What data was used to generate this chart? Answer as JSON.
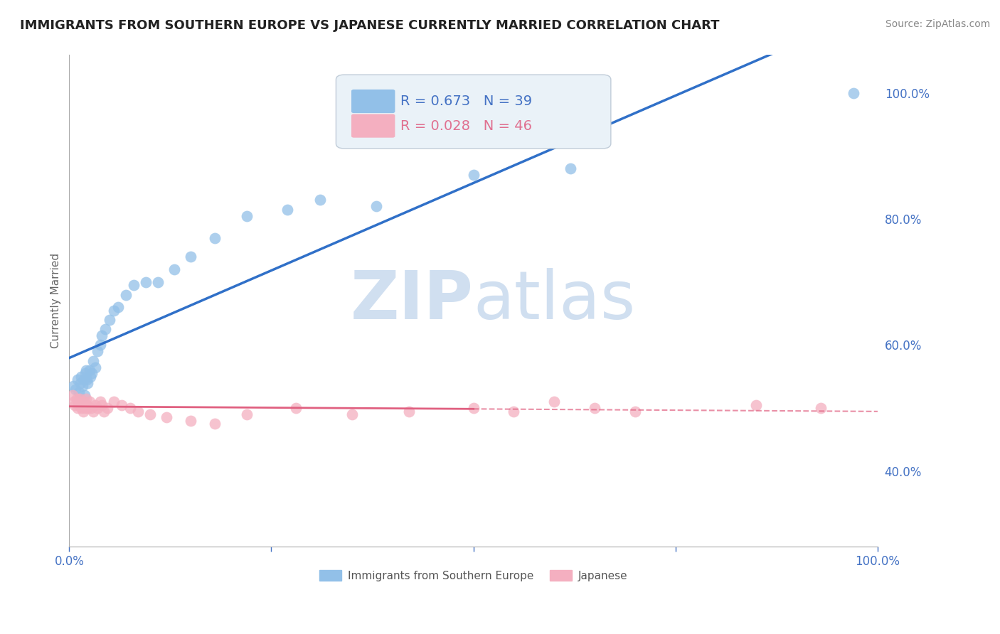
{
  "title": "IMMIGRANTS FROM SOUTHERN EUROPE VS JAPANESE CURRENTLY MARRIED CORRELATION CHART",
  "source": "Source: ZipAtlas.com",
  "ylabel": "Currently Married",
  "right_ytick_labels": [
    "40.0%",
    "60.0%",
    "80.0%",
    "100.0%"
  ],
  "right_ytick_values": [
    0.4,
    0.6,
    0.8,
    1.0
  ],
  "xmin": 0.0,
  "xmax": 1.0,
  "ymin": 0.28,
  "ymax": 1.06,
  "blue_label": "Immigrants from Southern Europe",
  "pink_label": "Japanese",
  "blue_R": 0.673,
  "blue_N": 39,
  "pink_R": 0.028,
  "pink_N": 46,
  "blue_color": "#92c0e8",
  "pink_color": "#f4afc0",
  "blue_line_color": "#3070c8",
  "pink_line_color": "#e06080",
  "watermark_zip": "ZIP",
  "watermark_atlas": "atlas",
  "watermark_color": "#d0dff0",
  "blue_x": [
    0.005,
    0.008,
    0.01,
    0.012,
    0.014,
    0.015,
    0.016,
    0.018,
    0.019,
    0.02,
    0.021,
    0.022,
    0.023,
    0.025,
    0.026,
    0.028,
    0.03,
    0.032,
    0.035,
    0.038,
    0.04,
    0.045,
    0.05,
    0.055,
    0.06,
    0.07,
    0.08,
    0.095,
    0.11,
    0.13,
    0.15,
    0.18,
    0.22,
    0.27,
    0.31,
    0.38,
    0.5,
    0.62,
    0.97
  ],
  "blue_y": [
    0.535,
    0.53,
    0.545,
    0.525,
    0.54,
    0.55,
    0.535,
    0.545,
    0.52,
    0.555,
    0.56,
    0.545,
    0.54,
    0.56,
    0.55,
    0.555,
    0.575,
    0.565,
    0.59,
    0.6,
    0.615,
    0.625,
    0.64,
    0.655,
    0.66,
    0.68,
    0.695,
    0.7,
    0.7,
    0.72,
    0.74,
    0.77,
    0.805,
    0.815,
    0.83,
    0.82,
    0.87,
    0.88,
    1.0
  ],
  "pink_x": [
    0.004,
    0.006,
    0.007,
    0.009,
    0.01,
    0.011,
    0.012,
    0.013,
    0.014,
    0.015,
    0.016,
    0.017,
    0.018,
    0.019,
    0.02,
    0.021,
    0.022,
    0.023,
    0.025,
    0.027,
    0.03,
    0.032,
    0.035,
    0.038,
    0.04,
    0.043,
    0.047,
    0.055,
    0.065,
    0.075,
    0.085,
    0.1,
    0.12,
    0.15,
    0.18,
    0.22,
    0.28,
    0.35,
    0.42,
    0.5,
    0.55,
    0.6,
    0.65,
    0.7,
    0.85,
    0.93
  ],
  "pink_y": [
    0.52,
    0.51,
    0.505,
    0.515,
    0.5,
    0.51,
    0.505,
    0.515,
    0.505,
    0.5,
    0.51,
    0.495,
    0.51,
    0.5,
    0.505,
    0.515,
    0.505,
    0.5,
    0.51,
    0.5,
    0.495,
    0.505,
    0.5,
    0.51,
    0.505,
    0.495,
    0.5,
    0.51,
    0.505,
    0.5,
    0.495,
    0.49,
    0.485,
    0.48,
    0.475,
    0.49,
    0.5,
    0.49,
    0.495,
    0.5,
    0.495,
    0.51,
    0.5,
    0.495,
    0.505,
    0.5
  ],
  "legend_box_color": "#eaf2f8",
  "legend_edge_color": "#c0ccd8",
  "legend_text_blue": "#4472c4",
  "legend_text_pink": "#e07090",
  "grid_color": "#cccccc",
  "axis_color": "#4472c4",
  "title_fontsize": 13,
  "source_fontsize": 10,
  "label_fontsize": 11,
  "tick_fontsize": 12,
  "legend_fontsize": 14
}
